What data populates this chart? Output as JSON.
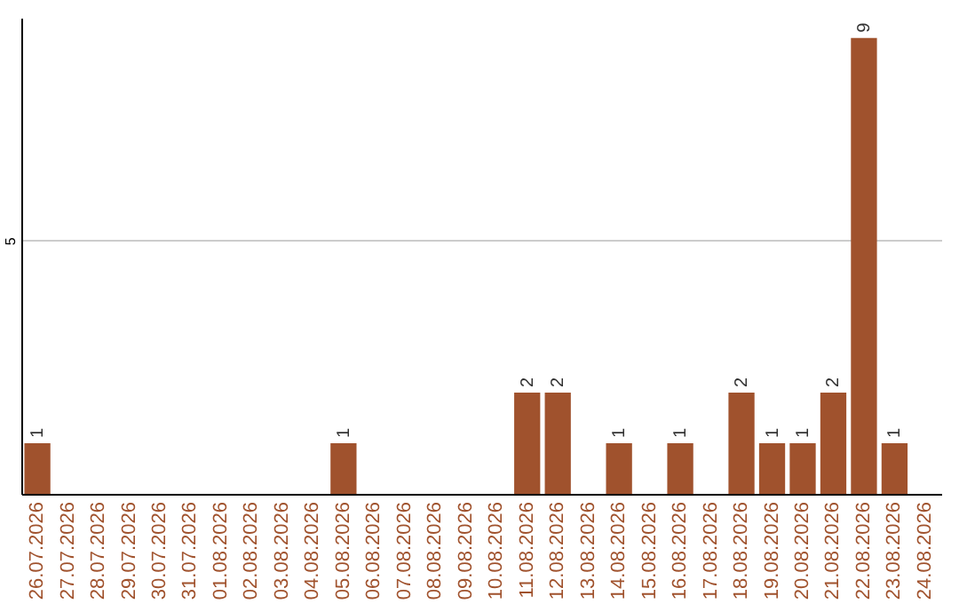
{
  "chart_data": {
    "type": "bar",
    "categories": [
      "26.07.2026",
      "27.07.2026",
      "28.07.2026",
      "29.07.2026",
      "30.07.2026",
      "31.07.2026",
      "01.08.2026",
      "02.08.2026",
      "03.08.2026",
      "04.08.2026",
      "05.08.2026",
      "06.08.2026",
      "07.08.2026",
      "08.08.2026",
      "09.08.2026",
      "10.08.2026",
      "11.08.2026",
      "12.08.2026",
      "13.08.2026",
      "14.08.2026",
      "15.08.2026",
      "16.08.2026",
      "17.08.2026",
      "18.08.2026",
      "19.08.2026",
      "20.08.2026",
      "21.08.2026",
      "22.08.2026",
      "23.08.2026",
      "24.08.2026"
    ],
    "values": [
      1,
      0,
      0,
      0,
      0,
      0,
      0,
      0,
      0,
      0,
      1,
      0,
      0,
      0,
      0,
      0,
      2,
      2,
      0,
      1,
      0,
      1,
      0,
      2,
      1,
      1,
      2,
      9,
      1,
      0
    ],
    "value_labels": [
      "1",
      null,
      null,
      null,
      null,
      null,
      null,
      null,
      null,
      null,
      "1",
      null,
      null,
      null,
      null,
      null,
      "2",
      "2",
      null,
      "1",
      null,
      "1",
      null,
      "2",
      "1",
      "1",
      "2",
      "9",
      "1",
      null
    ],
    "color": "#a0522d",
    "ylim": [
      0,
      9.4
    ],
    "yticks": [
      5
    ],
    "grid": "y"
  }
}
